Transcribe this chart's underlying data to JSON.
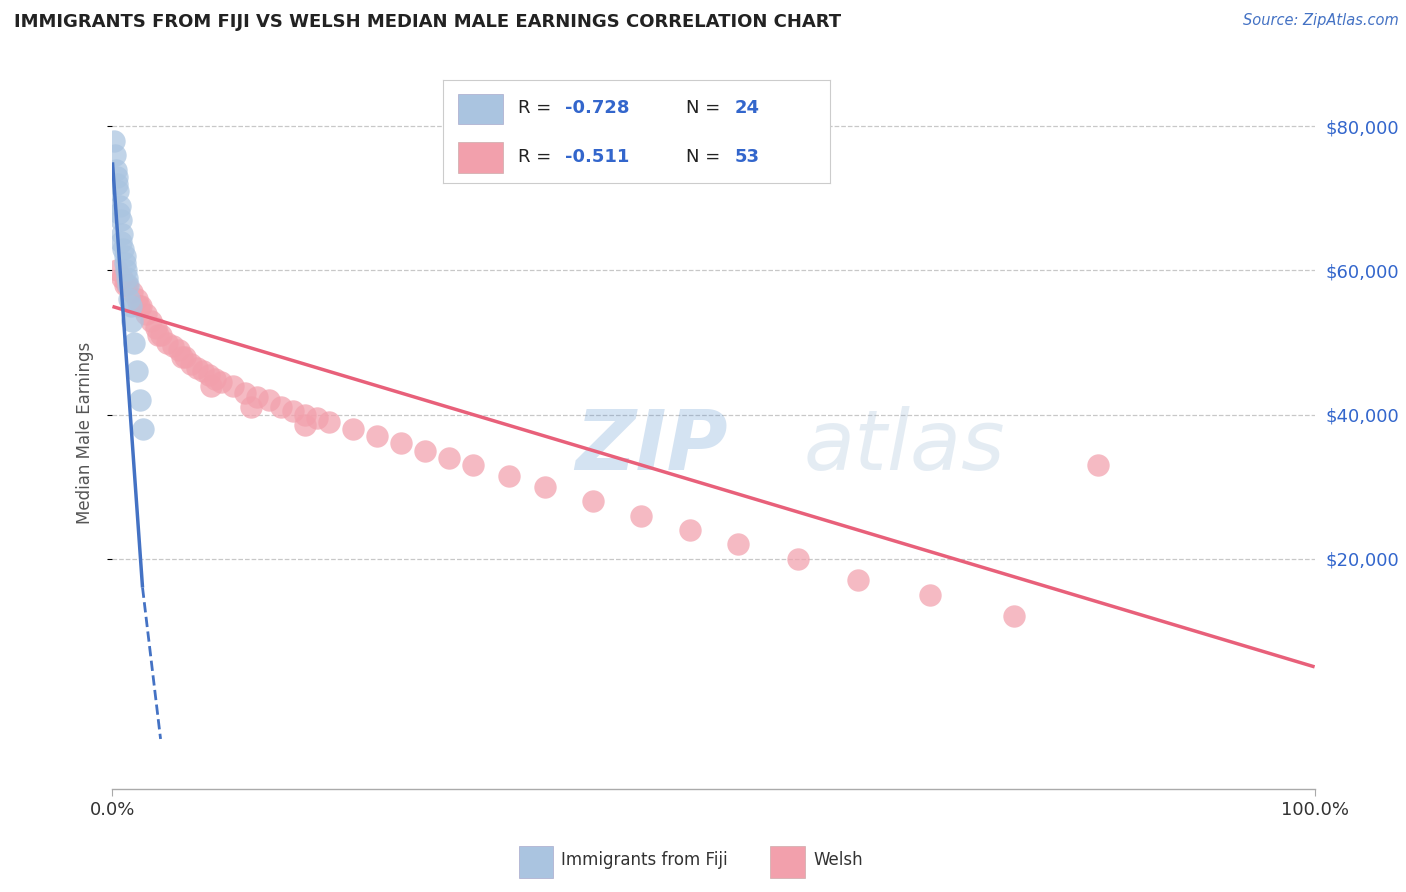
{
  "title": "IMMIGRANTS FROM FIJI VS WELSH MEDIAN MALE EARNINGS CORRELATION CHART",
  "source": "Source: ZipAtlas.com",
  "ylabel": "Median Male Earnings",
  "y_tick_labels": [
    "$20,000",
    "$40,000",
    "$60,000",
    "$80,000"
  ],
  "y_tick_values": [
    20000,
    40000,
    60000,
    80000
  ],
  "ylim": [
    -12000,
    87000
  ],
  "xlim": [
    0,
    100
  ],
  "watermark_text": "ZIPatlas",
  "legend_fiji_label": "Immigrants from Fiji",
  "legend_welsh_label": "Welsh",
  "fiji_R": -0.728,
  "fiji_N": 24,
  "welsh_R": -0.511,
  "welsh_N": 53,
  "fiji_color": "#aac4e0",
  "fiji_line_color": "#4472c4",
  "welsh_color": "#f2a0ac",
  "welsh_line_color": "#e8607a",
  "fiji_scatter_x": [
    0.15,
    0.25,
    0.3,
    0.4,
    0.5,
    0.6,
    0.7,
    0.8,
    0.9,
    1.0,
    1.1,
    1.2,
    1.3,
    1.5,
    1.6,
    1.8,
    2.0,
    2.3,
    2.5,
    0.35,
    0.55,
    0.75,
    1.05,
    1.4
  ],
  "fiji_scatter_y": [
    78000,
    76000,
    74000,
    73000,
    71000,
    69000,
    67000,
    65000,
    63000,
    62000,
    60000,
    59000,
    58000,
    55000,
    53000,
    50000,
    46000,
    42000,
    38000,
    72000,
    68000,
    64000,
    61000,
    56000
  ],
  "welsh_scatter_x": [
    0.4,
    0.8,
    1.2,
    1.6,
    2.0,
    2.4,
    2.8,
    3.2,
    3.6,
    4.0,
    4.5,
    5.0,
    5.5,
    6.0,
    6.5,
    7.0,
    7.5,
    8.0,
    8.5,
    9.0,
    10.0,
    11.0,
    12.0,
    13.0,
    14.0,
    15.0,
    16.0,
    17.0,
    18.0,
    20.0,
    22.0,
    24.0,
    26.0,
    28.0,
    30.0,
    33.0,
    36.0,
    40.0,
    44.0,
    48.0,
    52.0,
    57.0,
    62.0,
    68.0,
    75.0,
    82.0,
    1.0,
    2.2,
    3.8,
    5.8,
    8.2,
    11.5,
    16.0
  ],
  "welsh_scatter_y": [
    60000,
    59000,
    58000,
    57000,
    56000,
    55000,
    54000,
    53000,
    52000,
    51000,
    50000,
    49500,
    49000,
    48000,
    47000,
    46500,
    46000,
    45500,
    45000,
    44500,
    44000,
    43000,
    42500,
    42000,
    41000,
    40500,
    40000,
    39500,
    39000,
    38000,
    37000,
    36000,
    35000,
    34000,
    33000,
    31500,
    30000,
    28000,
    26000,
    24000,
    22000,
    20000,
    17000,
    15000,
    12000,
    33000,
    58000,
    55000,
    51000,
    48000,
    44000,
    41000,
    38500
  ],
  "background_color": "#ffffff",
  "grid_color": "#c8c8c8",
  "title_color": "#222222",
  "axis_color": "#aaaaaa",
  "fiji_line_x0": 0,
  "fiji_line_y0": 75000,
  "fiji_line_x1": 2.5,
  "fiji_line_y1": 16000,
  "fiji_dash_x0": 2.5,
  "fiji_dash_y0": 16000,
  "fiji_dash_x1": 4.0,
  "fiji_dash_y1": -5000,
  "welsh_line_x0": 0,
  "welsh_line_y0": 55000,
  "welsh_line_x1": 100,
  "welsh_line_y1": 5000
}
